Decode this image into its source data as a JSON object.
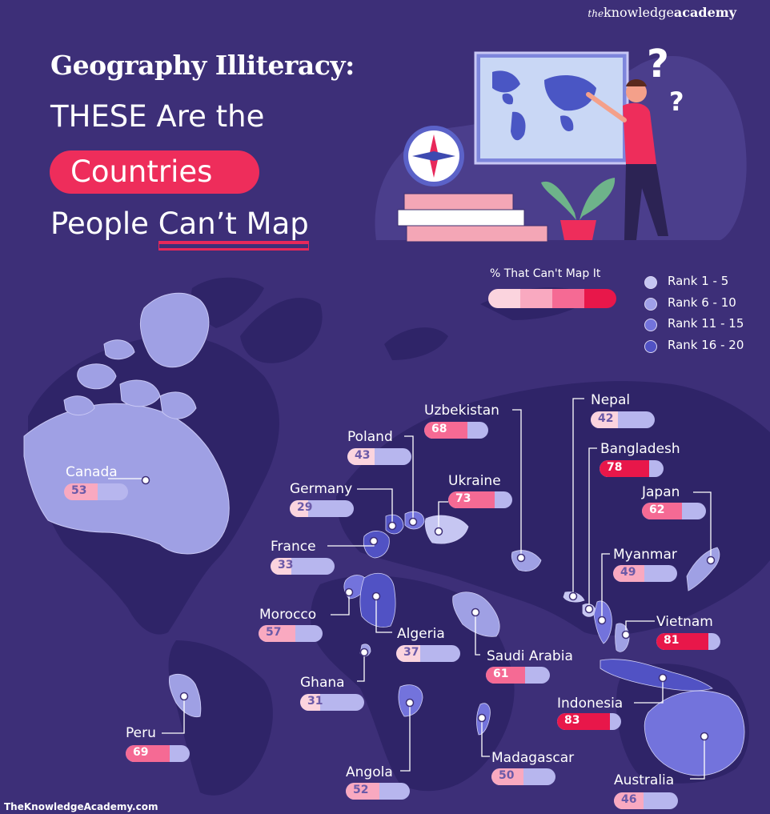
{
  "brand": {
    "prefix": "the",
    "name": "knowledge",
    "bold": "academy"
  },
  "title": {
    "line1": "Geography Illiteracy:",
    "line2": "THESE Are the",
    "line3": "Countries",
    "line4a": "People ",
    "line4b": "Can’t Map"
  },
  "legend": {
    "title": "% That Can't Map It",
    "scale_colors": [
      "#fbd4de",
      "#f9a9c0",
      "#f56a94",
      "#e8174a"
    ],
    "ranks": [
      {
        "label": "Rank 1 - 5",
        "color": "#c6c6f2"
      },
      {
        "label": "Rank 6 - 10",
        "color": "#9f9fe8"
      },
      {
        "label": "Rank 11 - 15",
        "color": "#7373dc"
      },
      {
        "label": "Rank 16 - 20",
        "color": "#5152c4"
      }
    ]
  },
  "countries": [
    {
      "name": "Canada",
      "value": 53
    },
    {
      "name": "Uzbekistan",
      "value": 68
    },
    {
      "name": "Poland",
      "value": 43
    },
    {
      "name": "Germany",
      "value": 29
    },
    {
      "name": "Ukraine",
      "value": 73
    },
    {
      "name": "France",
      "value": 33
    },
    {
      "name": "Morocco",
      "value": 57
    },
    {
      "name": "Algeria",
      "value": 37
    },
    {
      "name": "Saudi Arabia",
      "value": 61
    },
    {
      "name": "Ghana",
      "value": 31
    },
    {
      "name": "Peru",
      "value": 69
    },
    {
      "name": "Angola",
      "value": 52
    },
    {
      "name": "Madagascar",
      "value": 50
    },
    {
      "name": "Nepal",
      "value": 42
    },
    {
      "name": "Bangladesh",
      "value": 78
    },
    {
      "name": "Japan",
      "value": 62
    },
    {
      "name": "Myanmar",
      "value": 49
    },
    {
      "name": "Vietnam",
      "value": 81
    },
    {
      "name": "Indonesia",
      "value": 83
    },
    {
      "name": "Australia",
      "value": 46
    }
  ],
  "footer": "TheKnowledgeAcademy.com"
}
